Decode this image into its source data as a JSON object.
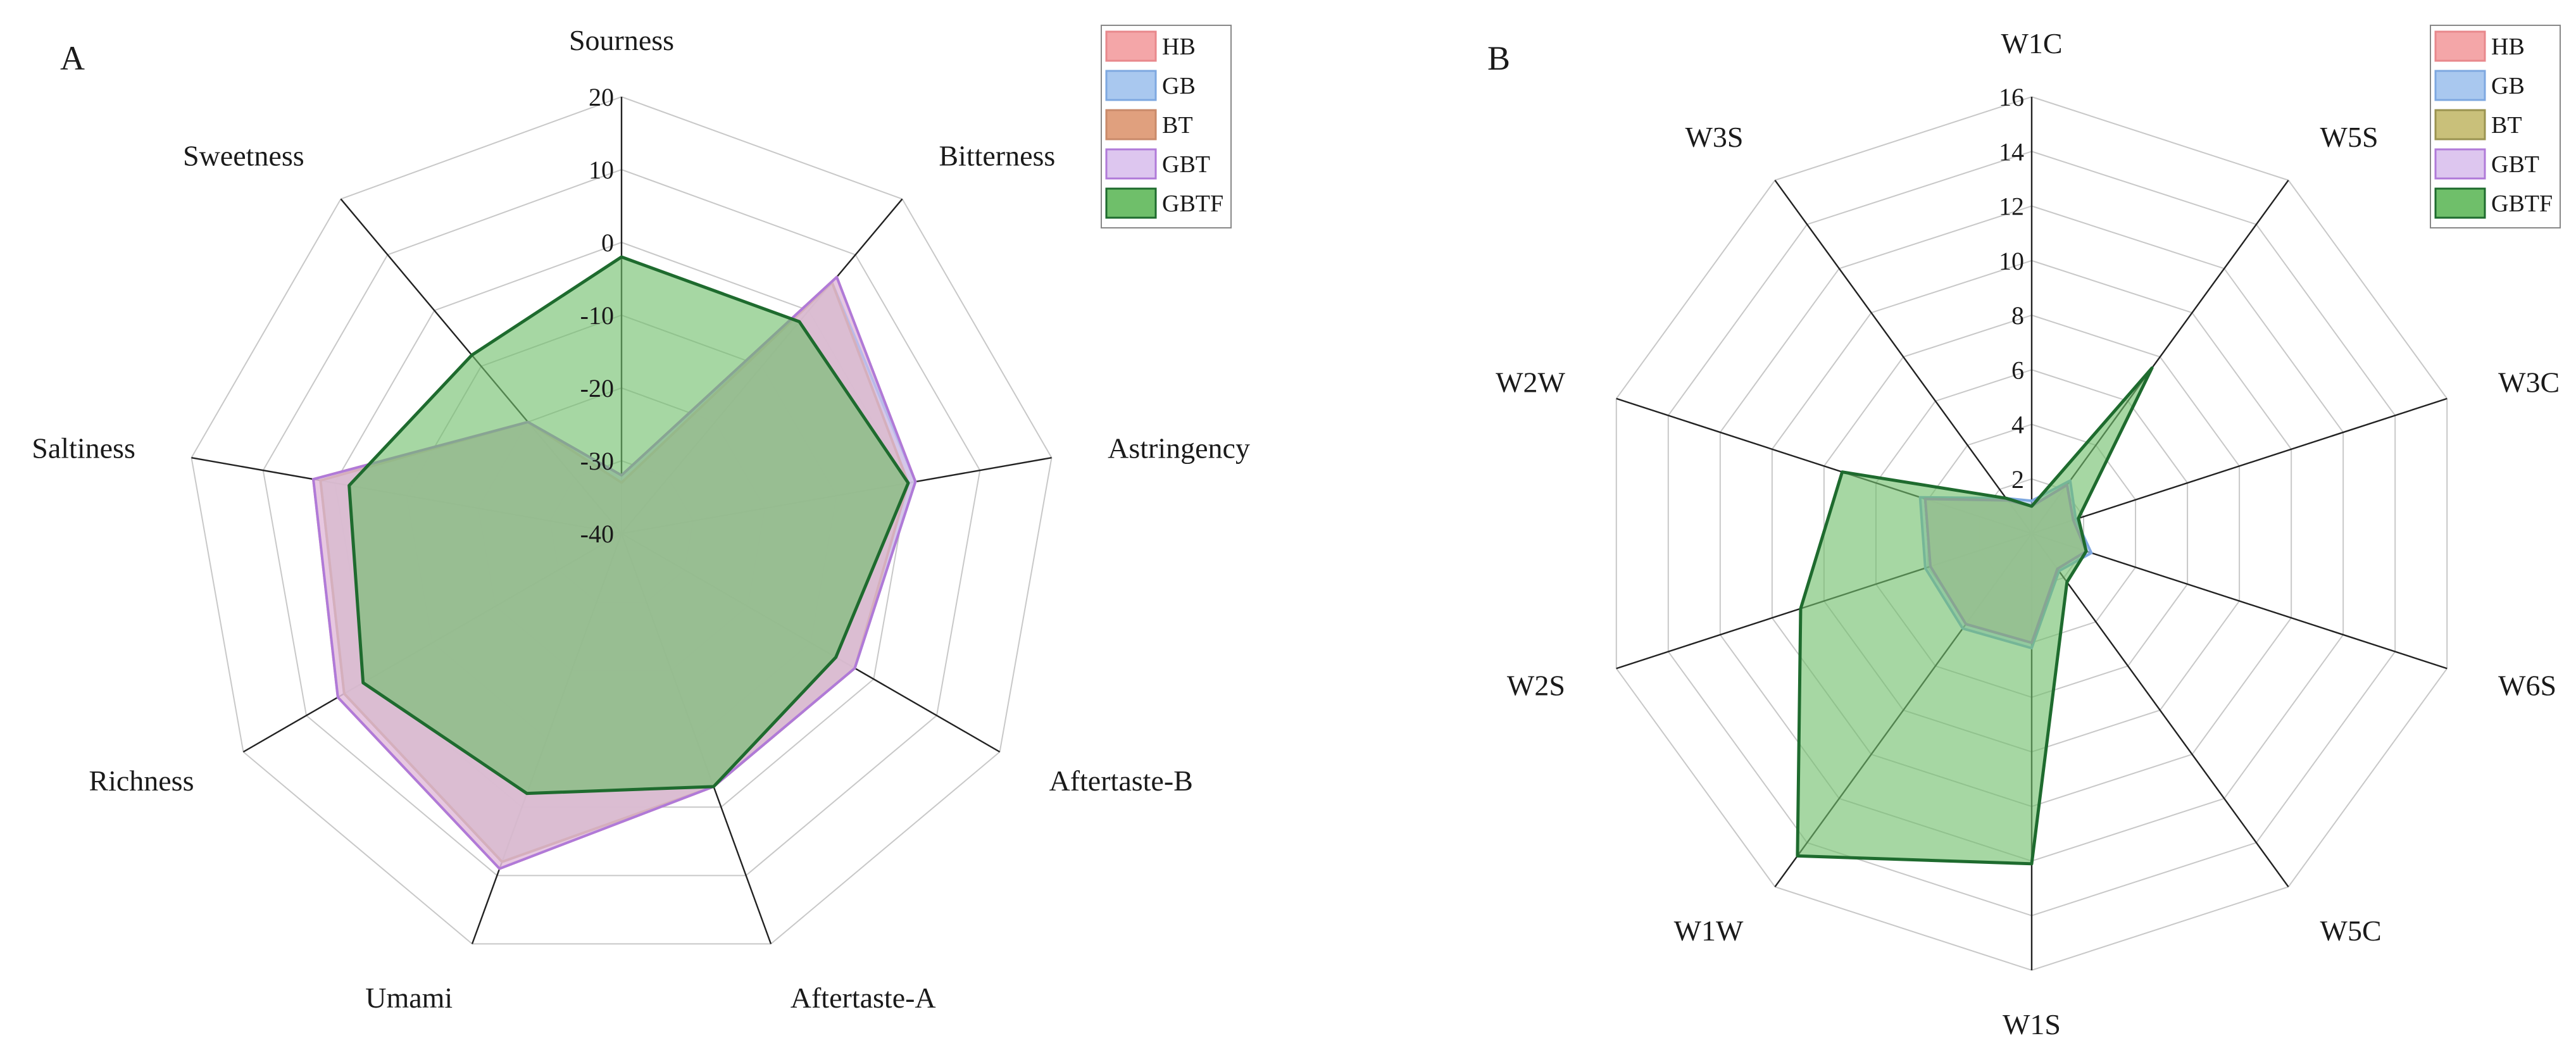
{
  "chart_data": [
    {
      "type": "radar",
      "panel_label": "A",
      "axes": [
        "Sourness",
        "Bitterness",
        "Astringency",
        "Aftertaste-B",
        "Aftertaste-A",
        "Umami",
        "Richness",
        "Saltiness",
        "Sweetness"
      ],
      "rlim": [
        -40,
        20
      ],
      "ticks": [
        20,
        10,
        0,
        -10,
        -20,
        -30,
        -40
      ],
      "tick_labels": [
        "20",
        "10",
        "0",
        "-10",
        "-20",
        "-30",
        "-40"
      ],
      "legend_position": "top-right",
      "series": [
        {
          "name": "HB",
          "fill": "#f4a6a8",
          "stroke": "#e8888c",
          "values": [
            -32,
            6,
            1,
            -3,
            -3,
            9,
            5,
            3,
            -20
          ]
        },
        {
          "name": "GB",
          "fill": "#a9c8ef",
          "stroke": "#7ea8e0",
          "values": [
            -32,
            5,
            1,
            -3,
            -3,
            8,
            4,
            2,
            -20
          ]
        },
        {
          "name": "BT",
          "fill": "#e0a07e",
          "stroke": "#c98a6a",
          "values": [
            -33,
            5,
            0,
            -3,
            -3,
            8,
            4,
            2,
            -20
          ]
        },
        {
          "name": "GBT",
          "fill": "#ddc6ef",
          "stroke": "#b07ad8",
          "values": [
            -32,
            6,
            1,
            -3,
            -3,
            9,
            5,
            3,
            -20
          ]
        },
        {
          "name": "GBTF",
          "fill": "#6fbf6a",
          "stroke": "#1e6b2e",
          "values": [
            -2,
            -2,
            0,
            -6,
            -3,
            -2,
            1,
            -2,
            -8
          ]
        }
      ]
    },
    {
      "type": "radar",
      "panel_label": "B",
      "axes": [
        "W1C",
        "W5S",
        "W3C",
        "W6S",
        "W5C",
        "W1S",
        "W1W",
        "W2S",
        "W2W",
        "W3S"
      ],
      "rlim": [
        0,
        16
      ],
      "ticks": [
        2,
        4,
        6,
        8,
        10,
        12,
        14,
        16
      ],
      "tick_labels": [
        "2",
        "4",
        "6",
        "8",
        "10",
        "12",
        "14",
        "16"
      ],
      "legend_position": "top-right",
      "series": [
        {
          "name": "HB",
          "fill": "#f4a6a8",
          "stroke": "#e8888c",
          "values": [
            1,
            2.2,
            1.6,
            2.1,
            1.6,
            4,
            4.1,
            3.9,
            4.1,
            1.5
          ]
        },
        {
          "name": "GB",
          "fill": "#a9c8ef",
          "stroke": "#7ea8e0",
          "values": [
            1.2,
            2.4,
            1.7,
            2.3,
            1.7,
            4.2,
            4.3,
            4.1,
            4.3,
            1.6
          ]
        },
        {
          "name": "BT",
          "fill": "#c9c07a",
          "stroke": "#9a9350",
          "values": [
            1,
            2.2,
            1.6,
            2.1,
            1.6,
            4,
            4.1,
            3.9,
            4.1,
            1.5
          ]
        },
        {
          "name": "GBT",
          "fill": "#ddc6ef",
          "stroke": "#b07ad8",
          "values": [
            1,
            2.2,
            1.6,
            2.1,
            1.6,
            4,
            4.1,
            3.9,
            4.1,
            1.5
          ]
        },
        {
          "name": "GBTF",
          "fill": "#6fbf6a",
          "stroke": "#1e6b2e",
          "values": [
            1,
            7.5,
            1.8,
            2.1,
            2.2,
            12.1,
            14.6,
            8.9,
            7.3,
            1.6
          ]
        }
      ]
    }
  ]
}
